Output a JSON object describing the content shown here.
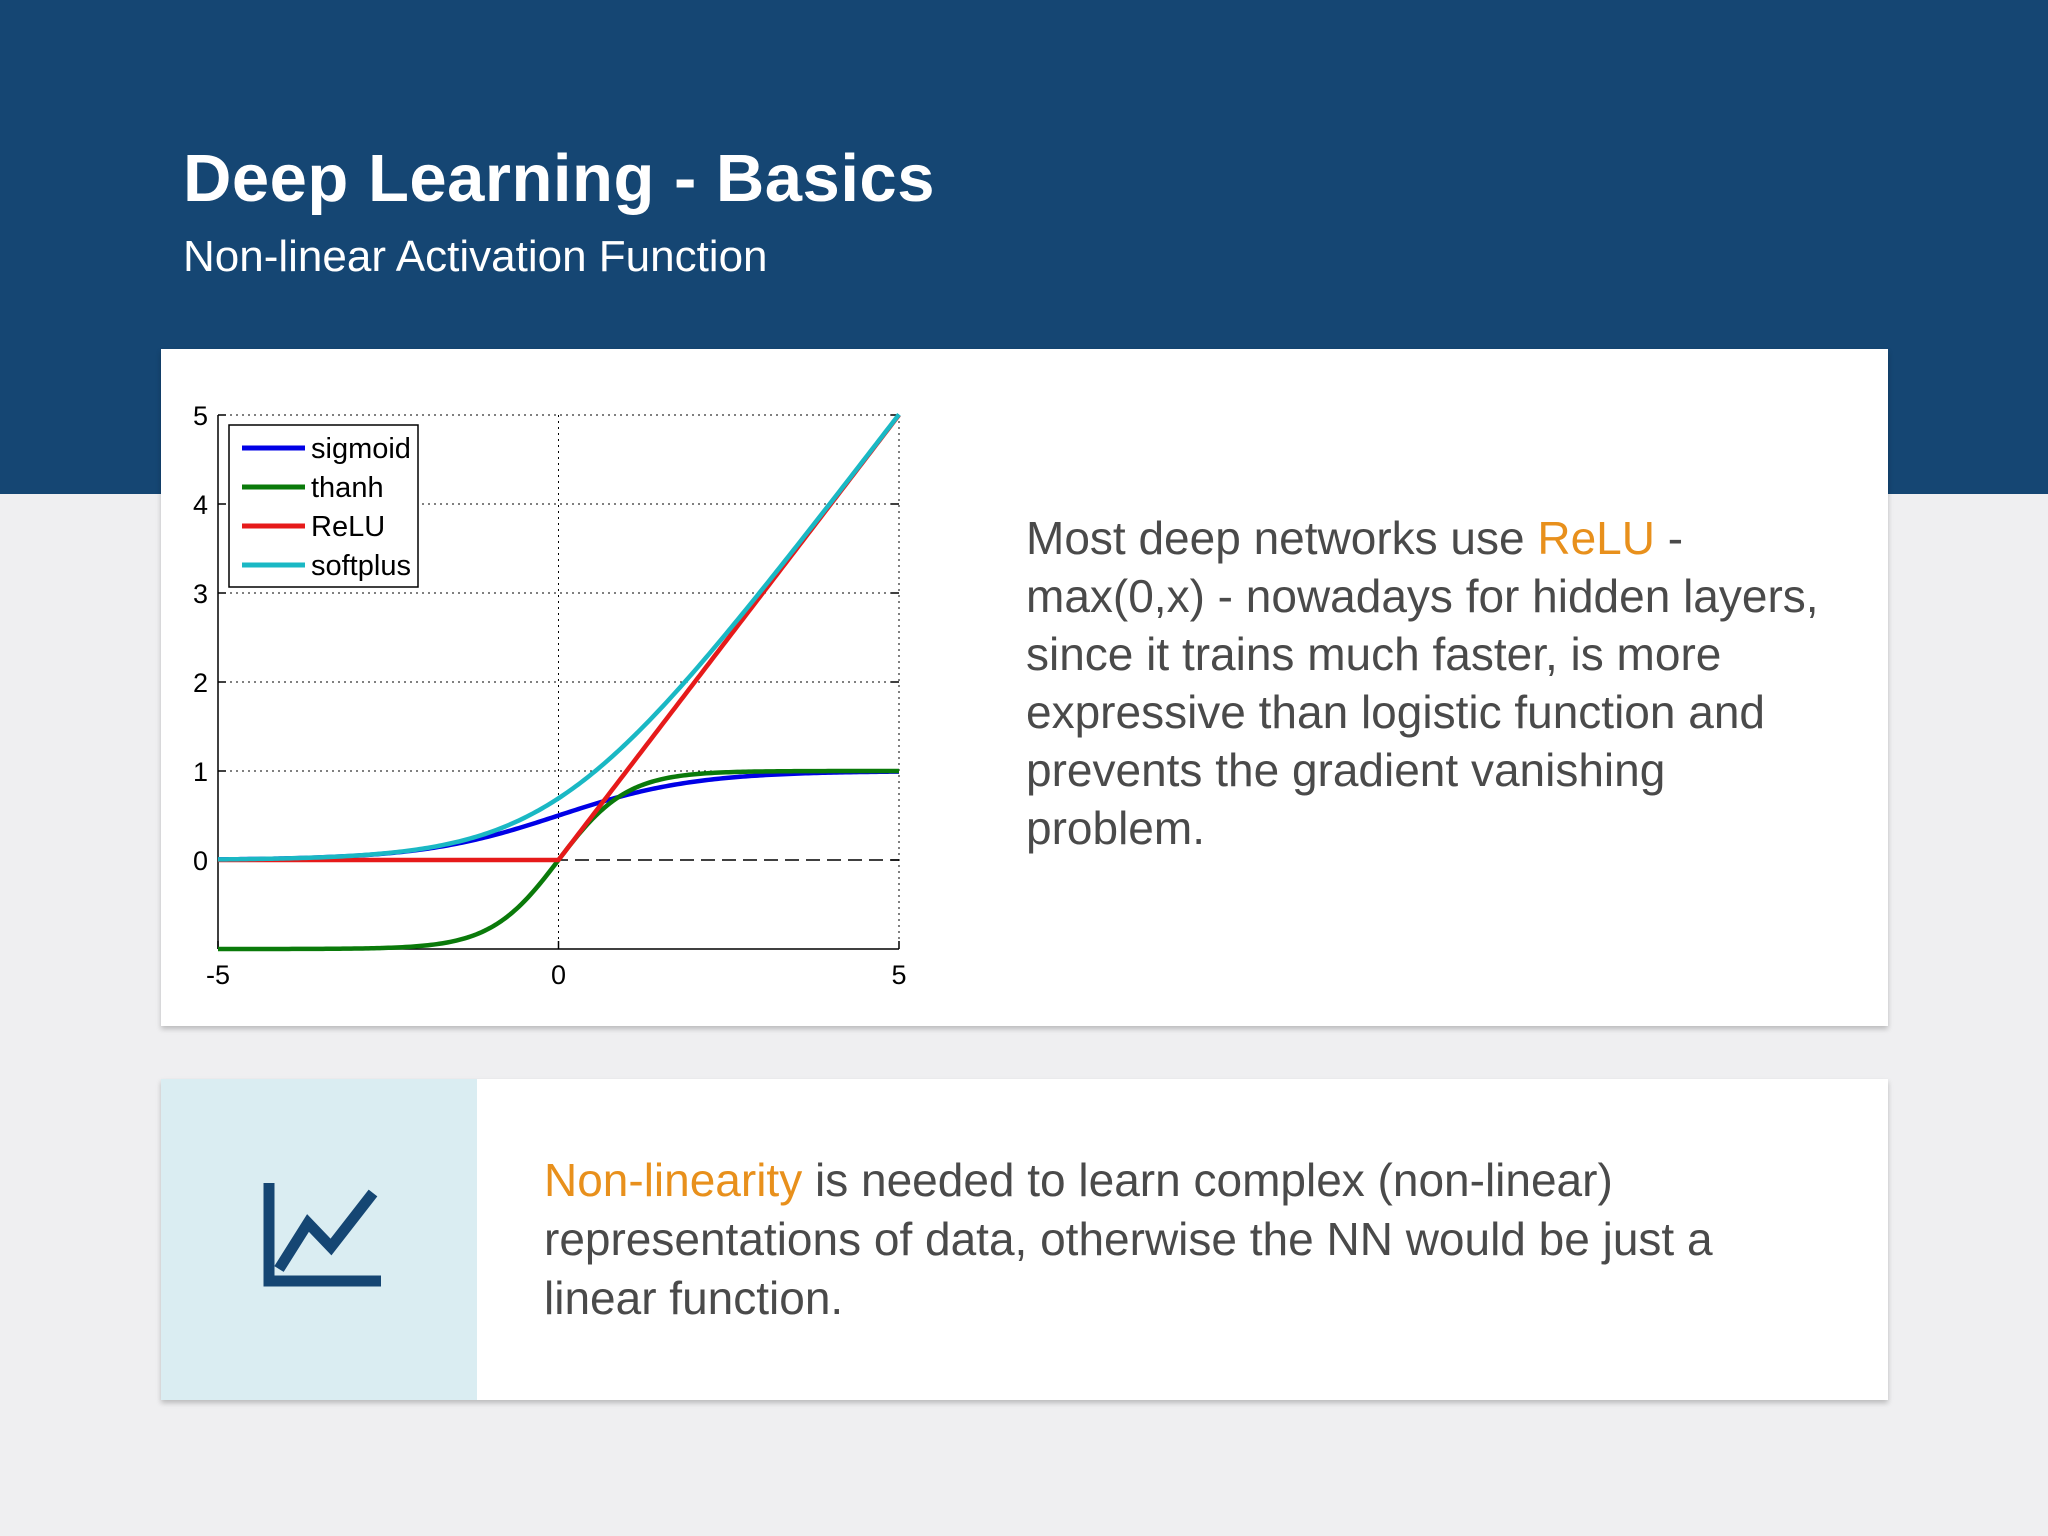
{
  "header": {
    "title": "Deep Learning - Basics",
    "subtitle": "Non-linear Activation Function"
  },
  "colors": {
    "header_bg": "#154673",
    "accent": "#e8901c",
    "icon_panel_bg": "#daedf2",
    "icon": "#154673"
  },
  "relu_note": {
    "before": "Most deep networks use ",
    "highlight": "ReLU",
    "after": " - max(0,x) - nowadays for hidden layers, since it trains much faster, is more expressive than logistic function and prevents the gradient vanishing problem."
  },
  "nonlinearity_note": {
    "icon": "line-chart-icon",
    "highlight": "Non-linearity",
    "after": " is needed to learn complex (non-linear) representations of data, otherwise the NN would be just a linear function."
  },
  "chart_data": {
    "type": "line",
    "title": "",
    "xlabel": "",
    "ylabel": "",
    "xlim": [
      -5,
      5
    ],
    "ylim": [
      -1,
      5
    ],
    "xticks": [
      -5,
      0,
      5
    ],
    "yticks": [
      0,
      1,
      2,
      3,
      4,
      5
    ],
    "xtick_labels": [
      "-5",
      "0",
      "5"
    ],
    "ytick_labels": [
      "0",
      "1",
      "2",
      "3",
      "4",
      "5"
    ],
    "grid": "dotted",
    "zero_line": "dashed",
    "legend_position": "top-left",
    "series": [
      {
        "name": "sigmoid",
        "color": "#0000e6",
        "function": "sigmoid",
        "x": [
          -5,
          -4,
          -3,
          -2,
          -1,
          0,
          1,
          2,
          3,
          4,
          5
        ],
        "y": [
          0.007,
          0.018,
          0.047,
          0.119,
          0.269,
          0.5,
          0.731,
          0.881,
          0.953,
          0.982,
          0.993
        ]
      },
      {
        "name": "thanh",
        "color": "#0a7a0a",
        "function": "tanh",
        "x": [
          -5,
          -4,
          -3,
          -2,
          -1,
          0,
          1,
          2,
          3,
          4,
          5
        ],
        "y": [
          -1.0,
          -0.999,
          -0.995,
          -0.964,
          -0.762,
          0,
          0.762,
          0.964,
          0.995,
          0.999,
          1.0
        ]
      },
      {
        "name": "ReLU",
        "color": "#e61a1a",
        "function": "relu",
        "x": [
          -5,
          -4,
          -3,
          -2,
          -1,
          0,
          1,
          2,
          3,
          4,
          5
        ],
        "y": [
          0,
          0,
          0,
          0,
          0,
          0,
          1,
          2,
          3,
          4,
          5
        ]
      },
      {
        "name": "softplus",
        "color": "#1ab8c4",
        "function": "softplus",
        "x": [
          -5,
          -4,
          -3,
          -2,
          -1,
          0,
          1,
          2,
          3,
          4,
          5
        ],
        "y": [
          0.007,
          0.018,
          0.049,
          0.127,
          0.313,
          0.693,
          1.313,
          2.127,
          3.049,
          4.018,
          5.007
        ]
      }
    ]
  }
}
